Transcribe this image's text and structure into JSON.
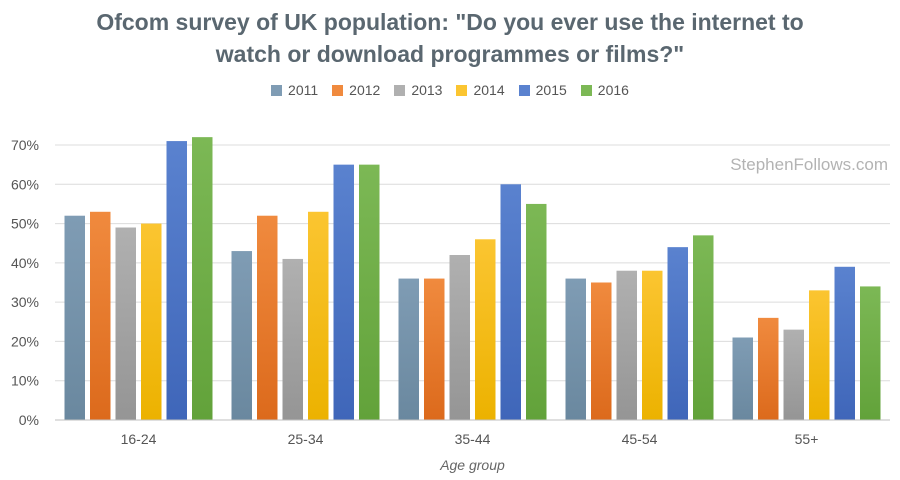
{
  "chart_data": {
    "type": "bar",
    "title_line1": "Ofcom survey of UK population: \"Do you ever use the internet to",
    "title_line2": "watch or download programmes or films?\"",
    "xlabel": "Age group",
    "ylabel": "",
    "watermark": "StephenFollows.com",
    "ylim": [
      0,
      70
    ],
    "yticks": [
      "0%",
      "10%",
      "20%",
      "30%",
      "40%",
      "50%",
      "60%",
      "70%"
    ],
    "ytick_values": [
      0,
      10,
      20,
      30,
      40,
      50,
      60,
      70
    ],
    "legend_position": "top-center",
    "grid": "horizontal",
    "categories": [
      "16-24",
      "25-34",
      "35-44",
      "45-54",
      "55+"
    ],
    "series": [
      {
        "name": "2011",
        "color": "#7f9cb4",
        "color_dark": "#6a889f",
        "values": [
          52,
          43,
          36,
          36,
          21
        ]
      },
      {
        "name": "2012",
        "color": "#f08a3e",
        "color_dark": "#dc6a1c",
        "values": [
          53,
          52,
          36,
          35,
          26
        ]
      },
      {
        "name": "2013",
        "color": "#b0b0b0",
        "color_dark": "#959595",
        "values": [
          49,
          41,
          42,
          38,
          23
        ]
      },
      {
        "name": "2014",
        "color": "#fbc531",
        "color_dark": "#ecb200",
        "values": [
          50,
          53,
          46,
          38,
          33
        ]
      },
      {
        "name": "2015",
        "color": "#5a82cf",
        "color_dark": "#3f66b9",
        "values": [
          71,
          65,
          60,
          44,
          39
        ]
      },
      {
        "name": "2016",
        "color": "#7cb855",
        "color_dark": "#62a23a",
        "values": [
          72,
          65,
          55,
          47,
          34
        ]
      }
    ]
  }
}
